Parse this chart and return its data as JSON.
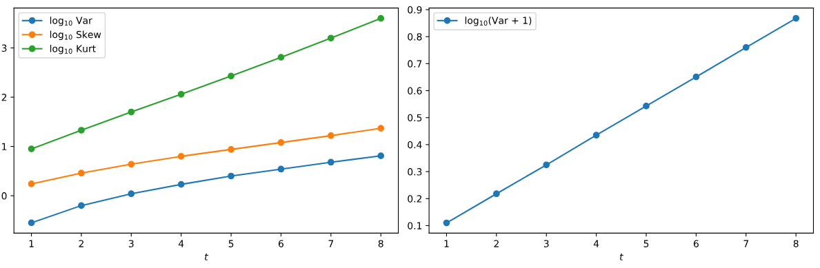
{
  "chart_data": [
    {
      "type": "line",
      "xlabel": "t",
      "x": [
        1,
        2,
        3,
        4,
        5,
        6,
        7,
        8
      ],
      "xlim": [
        0.65,
        8.35
      ],
      "xticks": [
        1,
        2,
        3,
        4,
        5,
        6,
        7,
        8
      ],
      "ylim": [
        -0.76,
        3.81
      ],
      "yticks": [
        0,
        1,
        2,
        3
      ],
      "marker": "circle",
      "legend": "top left",
      "grid": false,
      "series": [
        {
          "name": "log$_{10}$ Var",
          "color": "#1f77b4",
          "values": [
            -0.55,
            -0.2,
            0.04,
            0.23,
            0.4,
            0.54,
            0.68,
            0.81
          ]
        },
        {
          "name": "log$_{10}$ Skew",
          "color": "#ff7f0e",
          "values": [
            0.24,
            0.46,
            0.64,
            0.8,
            0.94,
            1.08,
            1.22,
            1.37
          ]
        },
        {
          "name": "log$_{10}$ Kurt",
          "color": "#2ca02c",
          "values": [
            0.95,
            1.33,
            1.7,
            2.06,
            2.43,
            2.81,
            3.2,
            3.6
          ]
        }
      ]
    },
    {
      "type": "line",
      "xlabel": "t",
      "x": [
        1,
        2,
        3,
        4,
        5,
        6,
        7,
        8
      ],
      "xlim": [
        0.65,
        8.35
      ],
      "xticks": [
        1,
        2,
        3,
        4,
        5,
        6,
        7,
        8
      ],
      "ylim": [
        0.072,
        0.906
      ],
      "yticks": [
        0.1,
        0.2,
        0.3,
        0.4,
        0.5,
        0.6,
        0.7,
        0.8,
        0.9
      ],
      "marker": "circle",
      "legend": "top left",
      "grid": false,
      "series": [
        {
          "name": "log$_{10}$(Var + 1)",
          "color": "#1f77b4",
          "values": [
            0.11,
            0.218,
            0.325,
            0.435,
            0.543,
            0.651,
            0.76,
            0.868
          ]
        }
      ]
    }
  ]
}
